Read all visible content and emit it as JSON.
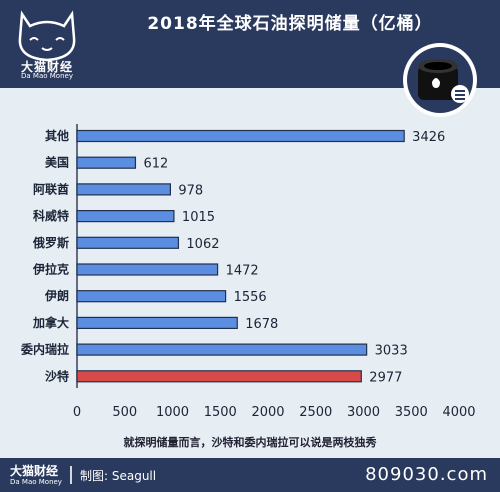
{
  "brand": {
    "name_cn": "大猫财经",
    "name_en": "Da Mao Money"
  },
  "title": "2018年全球石油探明储量（亿桶）",
  "subtitle": "就探明储量而言，沙特和委内瑞拉可以说是两枝独秀",
  "footer": {
    "brand_cn": "大猫财经",
    "brand_en": "Da Mao Money",
    "credit": "制图: Seagull",
    "site": "809030.com"
  },
  "colors": {
    "header": "#2a3a5e",
    "bar": "#5b8ee0",
    "highlight": "#d84a4a",
    "background": "#e6eef3"
  },
  "icons": {
    "logo": "cat-logo-icon",
    "barrel": "oil-barrel-icon"
  },
  "chart_data": {
    "type": "bar",
    "orientation": "horizontal",
    "categories": [
      "其他",
      "美国",
      "阿联酋",
      "科威特",
      "俄罗斯",
      "伊拉克",
      "伊朗",
      "加拿大",
      "委内瑞拉",
      "沙特"
    ],
    "values": [
      3426,
      612,
      978,
      1015,
      1062,
      1472,
      1556,
      1678,
      3033,
      2977
    ],
    "highlight": "沙特",
    "xlim": [
      0,
      4000
    ],
    "xticks": [
      0,
      500,
      1000,
      1500,
      2000,
      2500,
      3000,
      3500,
      4000
    ],
    "grid": false
  }
}
